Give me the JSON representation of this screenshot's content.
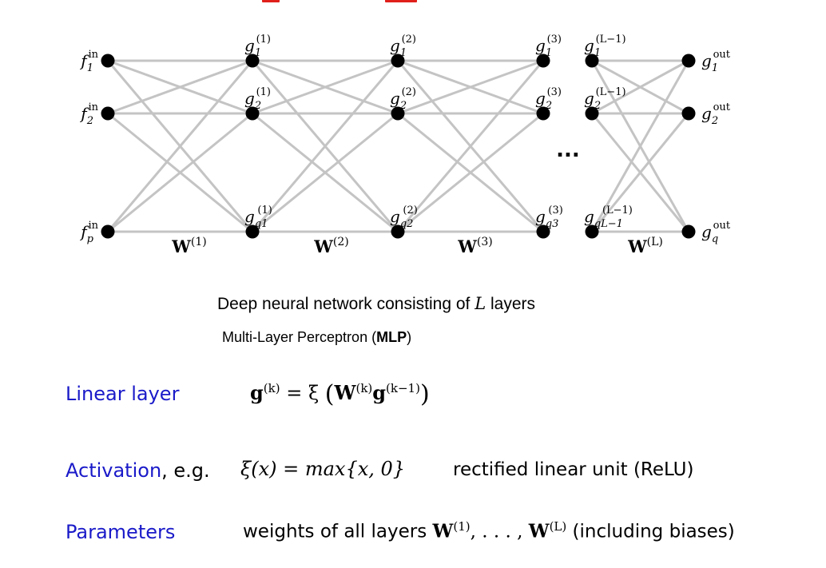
{
  "diagram": {
    "input_nodes": [
      {
        "base": "f",
        "sup": "in",
        "sub": "1"
      },
      {
        "base": "f",
        "sup": "in",
        "sub": "2"
      },
      {
        "base": "f",
        "sup": "in",
        "sub": "p"
      }
    ],
    "layer1_nodes": [
      {
        "base": "g",
        "sup": "(1)",
        "sub": "1"
      },
      {
        "base": "g",
        "sup": "(1)",
        "sub": "2"
      },
      {
        "base": "g",
        "sup": "(1)",
        "sub": "q1"
      }
    ],
    "layer2_nodes": [
      {
        "base": "g",
        "sup": "(2)",
        "sub": "1"
      },
      {
        "base": "g",
        "sup": "(2)",
        "sub": "2"
      },
      {
        "base": "g",
        "sup": "(2)",
        "sub": "q2"
      }
    ],
    "layer3_nodes": [
      {
        "base": "g",
        "sup": "(3)",
        "sub": "1"
      },
      {
        "base": "g",
        "sup": "(3)",
        "sub": "2"
      },
      {
        "base": "g",
        "sup": "(3)",
        "sub": "q3"
      }
    ],
    "layerL1_nodes": [
      {
        "base": "g",
        "sup": "(L−1)",
        "sub": "1"
      },
      {
        "base": "g",
        "sup": "(L−1)",
        "sub": "2"
      },
      {
        "base": "g",
        "sup": "(L−1)",
        "sub": "qL−1"
      }
    ],
    "output_nodes": [
      {
        "base": "g",
        "sup": "out",
        "sub": "1"
      },
      {
        "base": "g",
        "sup": "out",
        "sub": "2"
      },
      {
        "base": "g",
        "sup": "out",
        "sub": "q"
      }
    ],
    "weights": [
      {
        "base": "W",
        "sup": "(1)"
      },
      {
        "base": "W",
        "sup": "(2)"
      },
      {
        "base": "W",
        "sup": "(3)"
      },
      {
        "base": "W",
        "sup": "(L)"
      }
    ],
    "ellipsis": "..."
  },
  "caption": {
    "line1_before": "Deep neural network consisting of ",
    "line1_var": "L",
    "line1_after": " layers",
    "line2_before": "Multi-Layer Perceptron (",
    "line2_bold": "MLP",
    "line2_after": ")"
  },
  "rows": {
    "linear": {
      "label": "Linear layer",
      "formula_lhs": "g",
      "formula_lhs_sup": "(k)",
      "formula_eq": " = ξ ",
      "formula_W": "W",
      "formula_W_sup": "(k)",
      "formula_g": "g",
      "formula_g_sup": "(k−1)"
    },
    "activation": {
      "label": "Activation",
      "label_suffix": ", e.g.",
      "formula": "ξ(x) = max{x, 0}",
      "note": "rectified linear unit (ReLU)"
    },
    "parameters": {
      "label": "Parameters",
      "note_before": "weights of all layers ",
      "W1": "W",
      "W1_sup": "(1)",
      "dots": ", . . . , ",
      "WL": "W",
      "WL_sup": "(L)",
      "note_after": " (including biases)"
    }
  },
  "colors": {
    "label_blue": "#1a1ac9",
    "edge_gray": "#c4c4c4",
    "node_black": "#000000",
    "title_red": "#e0201b"
  }
}
